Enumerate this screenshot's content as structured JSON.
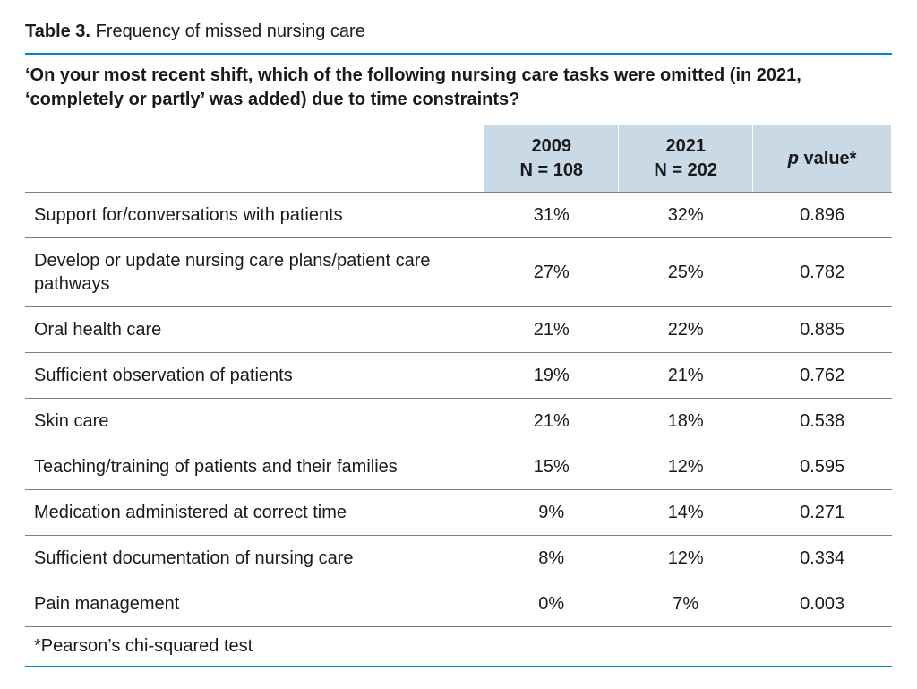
{
  "accent_color": "#0088c2",
  "title_label": "Table 3.",
  "title_text": "Frequency of missed nursing care",
  "question": "‘On your most recent shift, which of the following nursing care tasks were omitted (in 2021, ‘completely or partly’ was added) due to time constraints?",
  "columns": {
    "c1_line1": "2009",
    "c1_line2": "N = 108",
    "c2_line1": "2021",
    "c2_line2": "N = 202",
    "c3_prefix": "p",
    "c3_rest": " value*"
  },
  "rows": [
    {
      "label": "Support for/conversations with patients",
      "y2009": "31%",
      "y2021": "32%",
      "p": "0.896"
    },
    {
      "label": "Develop or update nursing care plans/patient care pathways",
      "y2009": "27%",
      "y2021": "25%",
      "p": "0.782"
    },
    {
      "label": "Oral health care",
      "y2009": "21%",
      "y2021": "22%",
      "p": "0.885"
    },
    {
      "label": "Sufficient observation of patients",
      "y2009": "19%",
      "y2021": "21%",
      "p": "0.762"
    },
    {
      "label": "Skin care",
      "y2009": "21%",
      "y2021": "18%",
      "p": "0.538"
    },
    {
      "label": "Teaching/training of patients and their families",
      "y2009": "15%",
      "y2021": "12%",
      "p": "0.595"
    },
    {
      "label": "Medication administered at correct time",
      "y2009": "9%",
      "y2021": "14%",
      "p": "0.271"
    },
    {
      "label": "Sufficient documentation of nursing care",
      "y2009": "8%",
      "y2021": "12%",
      "p": "0.334"
    },
    {
      "label": "Pain management",
      "y2009": "0%",
      "y2021": "7%",
      "p": "0.003"
    }
  ],
  "footnote": "*Pearson’s chi-squared test"
}
